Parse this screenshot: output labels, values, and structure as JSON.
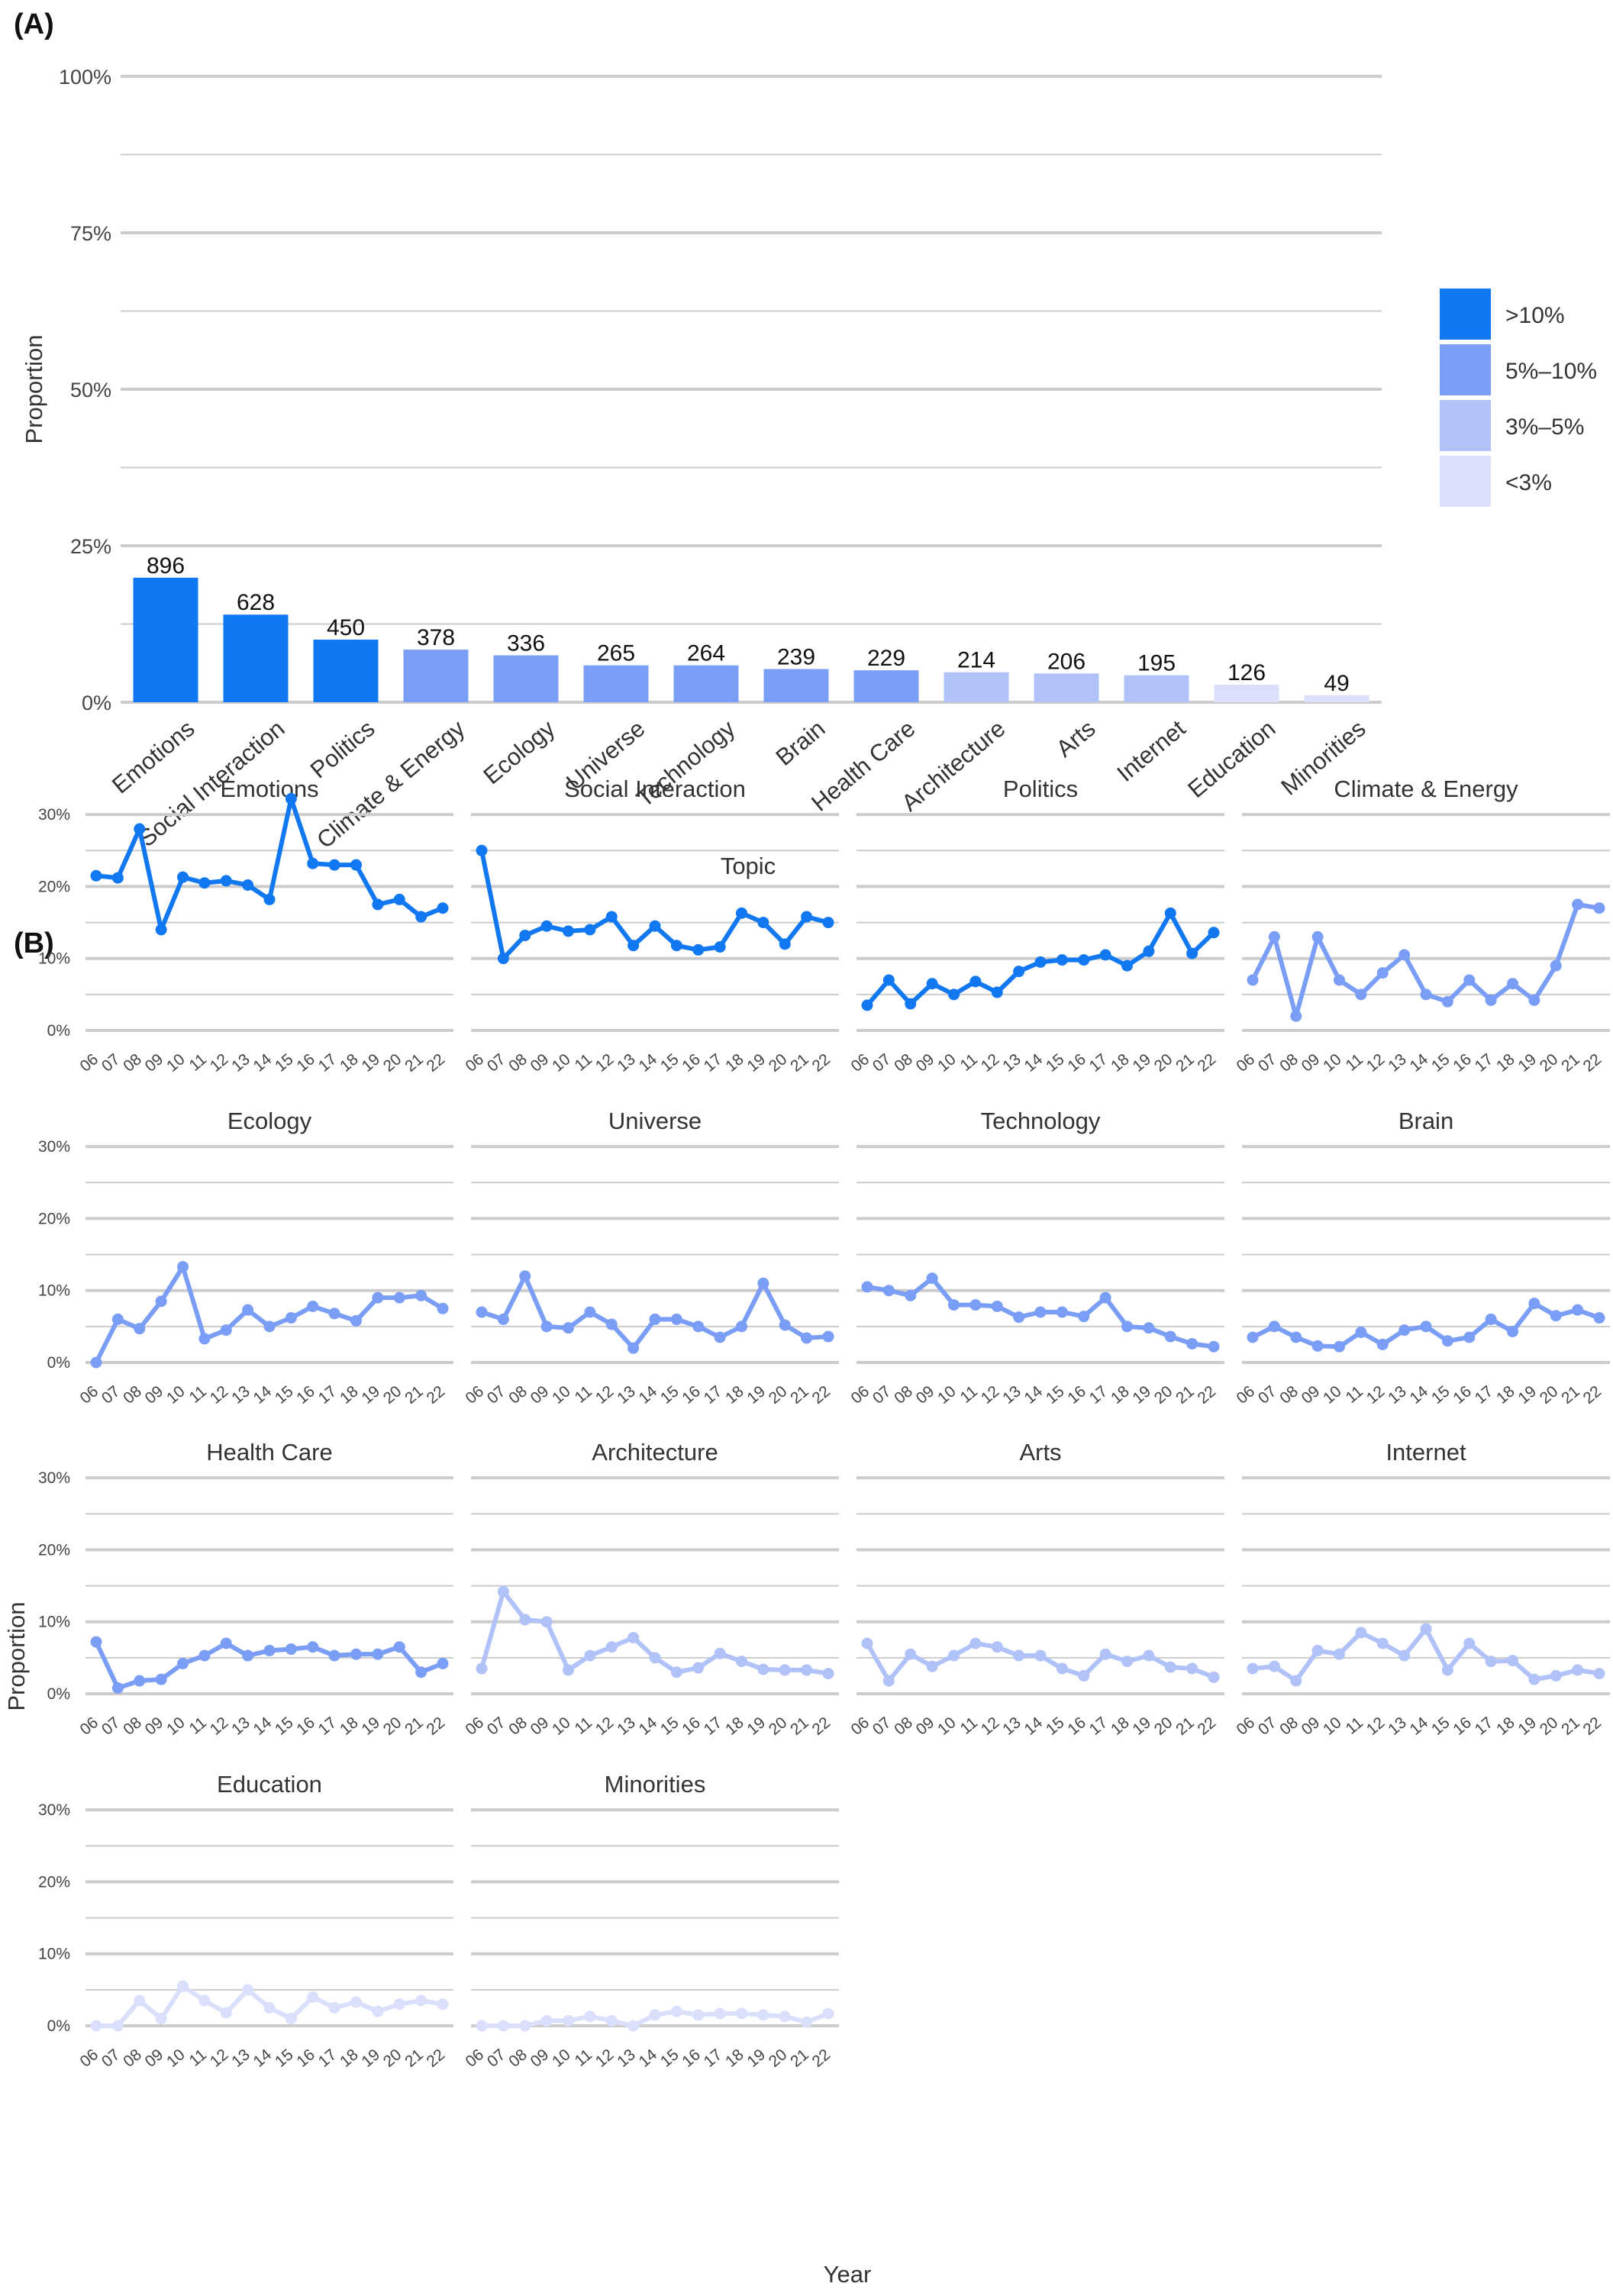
{
  "panel_labels": {
    "a": "(A)",
    "b": "(B)"
  },
  "colors": {
    ">10%": "#1278f2",
    "5%–10%": "#7a9df5",
    "3%–5%": "#b0c2f8",
    "<3%": "#dadffb",
    "grid": "#cccccc",
    "text": "#333333"
  },
  "chart_data": [
    {
      "type": "bar",
      "panel": "A",
      "xlabel": "Topic",
      "ylabel": "Proportion",
      "ylim": [
        0,
        100
      ],
      "yticks": [
        "0%",
        "25%",
        "50%",
        "75%",
        "100%"
      ],
      "grid": true,
      "legend": {
        "position": "right",
        "entries": [
          {
            "label": ">10%",
            "color": "#1278f2"
          },
          {
            "label": "5%–10%",
            "color": "#7a9df5"
          },
          {
            "label": "3%–5%",
            "color": "#b0c2f8"
          },
          {
            "label": "<3%",
            "color": "#dadffb"
          }
        ]
      },
      "categories": [
        "Emotions",
        "Social Interaction",
        "Politics",
        "Climate & Energy",
        "Ecology",
        "Universe",
        "Technology",
        "Brain",
        "Health Care",
        "Architecture",
        "Arts",
        "Internet",
        "Education",
        "Minorities"
      ],
      "counts": [
        896,
        628,
        450,
        378,
        336,
        265,
        264,
        239,
        229,
        214,
        206,
        195,
        126,
        49
      ],
      "values": [
        19.9,
        14.0,
        10.0,
        8.4,
        7.5,
        5.9,
        5.9,
        5.3,
        5.1,
        4.8,
        4.6,
        4.3,
        2.8,
        1.1
      ],
      "color_bins": [
        ">10%",
        ">10%",
        ">10%",
        "5%–10%",
        "5%–10%",
        "5%–10%",
        "5%–10%",
        "5%–10%",
        "5%–10%",
        "3%–5%",
        "3%–5%",
        "3%–5%",
        "<3%",
        "<3%"
      ]
    },
    {
      "type": "line",
      "panel": "B",
      "xlabel": "Year",
      "ylabel": "Proportion",
      "ylim": [
        0,
        35
      ],
      "yticks": [
        "0%",
        "10%",
        "20%",
        "30%"
      ],
      "grid": true,
      "x": [
        "06",
        "07",
        "08",
        "09",
        "10",
        "11",
        "12",
        "13",
        "14",
        "15",
        "16",
        "17",
        "18",
        "19",
        "20",
        "21",
        "22"
      ],
      "series": [
        {
          "name": "Emotions",
          "bin": ">10%",
          "values": [
            21.5,
            21.2,
            28.0,
            14.0,
            21.3,
            20.5,
            20.8,
            20.2,
            18.2,
            32.2,
            23.2,
            23.0,
            23.0,
            17.5,
            18.2,
            15.8,
            17.0
          ]
        },
        {
          "name": "Social Interaction",
          "bin": ">10%",
          "values": [
            25.0,
            10.0,
            13.2,
            14.5,
            13.8,
            14.0,
            15.8,
            11.8,
            14.5,
            11.8,
            11.2,
            11.6,
            16.3,
            15.0,
            12.0,
            15.8,
            15.0
          ]
        },
        {
          "name": "Politics",
          "bin": ">10%",
          "values": [
            3.5,
            7.0,
            3.7,
            6.5,
            5.0,
            6.8,
            5.3,
            8.2,
            9.5,
            9.8,
            9.8,
            10.5,
            9.0,
            11.0,
            16.3,
            10.7,
            13.6
          ]
        },
        {
          "name": "Climate & Energy",
          "bin": "5%–10%",
          "values": [
            7.0,
            13.0,
            2.0,
            13.0,
            7.0,
            5.0,
            8.0,
            10.5,
            5.0,
            4.0,
            7.0,
            4.2,
            6.5,
            4.2,
            9.0,
            17.5,
            17.0
          ]
        },
        {
          "name": "Ecology",
          "bin": "5%–10%",
          "values": [
            0.0,
            6.0,
            4.7,
            8.5,
            13.3,
            3.3,
            4.5,
            7.3,
            5.0,
            6.2,
            7.8,
            6.8,
            5.8,
            9.0,
            9.0,
            9.3,
            7.5
          ]
        },
        {
          "name": "Universe",
          "bin": "5%–10%",
          "values": [
            7.0,
            6.0,
            12.0,
            5.0,
            4.8,
            7.0,
            5.3,
            2.0,
            6.0,
            6.0,
            5.0,
            3.5,
            5.0,
            11.0,
            5.2,
            3.4,
            3.6
          ]
        },
        {
          "name": "Technology",
          "bin": "5%–10%",
          "values": [
            10.5,
            10.0,
            9.3,
            11.7,
            8.0,
            8.0,
            7.8,
            6.3,
            7.0,
            7.0,
            6.4,
            9.0,
            5.0,
            4.8,
            3.6,
            2.6,
            2.2
          ]
        },
        {
          "name": "Brain",
          "bin": "5%–10%",
          "values": [
            3.5,
            5.0,
            3.5,
            2.3,
            2.2,
            4.2,
            2.5,
            4.5,
            5.0,
            3.0,
            3.5,
            6.0,
            4.3,
            8.2,
            6.5,
            7.3,
            6.2
          ]
        },
        {
          "name": "Health Care",
          "bin": "5%–10%",
          "values": [
            7.2,
            0.8,
            1.8,
            2.0,
            4.2,
            5.3,
            7.0,
            5.3,
            6.0,
            6.2,
            6.5,
            5.3,
            5.5,
            5.5,
            6.5,
            3.0,
            4.2
          ]
        },
        {
          "name": "Architecture",
          "bin": "3%–5%",
          "values": [
            3.5,
            14.2,
            10.3,
            10.0,
            3.3,
            5.3,
            6.5,
            7.8,
            5.0,
            3.0,
            3.6,
            5.6,
            4.5,
            3.4,
            3.3,
            3.3,
            2.8
          ]
        },
        {
          "name": "Arts",
          "bin": "3%–5%",
          "values": [
            7.0,
            1.8,
            5.5,
            3.8,
            5.3,
            7.0,
            6.5,
            5.3,
            5.3,
            3.5,
            2.5,
            5.5,
            4.5,
            5.3,
            3.7,
            3.5,
            2.3
          ]
        },
        {
          "name": "Internet",
          "bin": "3%–5%",
          "values": [
            3.5,
            3.8,
            1.8,
            6.0,
            5.5,
            8.5,
            7.0,
            5.3,
            9.0,
            3.3,
            7.0,
            4.5,
            4.6,
            2.0,
            2.5,
            3.3,
            2.8
          ]
        },
        {
          "name": "Education",
          "bin": "<3%",
          "values": [
            0.0,
            0.0,
            3.5,
            1.0,
            5.5,
            3.5,
            1.8,
            5.0,
            2.5,
            1.0,
            4.0,
            2.5,
            3.3,
            2.0,
            3.0,
            3.5,
            3.0
          ]
        },
        {
          "name": "Minorities",
          "bin": "<3%",
          "values": [
            0.0,
            0.0,
            0.0,
            0.7,
            0.7,
            1.3,
            0.7,
            0.0,
            1.5,
            2.0,
            1.5,
            1.7,
            1.7,
            1.5,
            1.3,
            0.5,
            1.7
          ]
        }
      ]
    }
  ]
}
